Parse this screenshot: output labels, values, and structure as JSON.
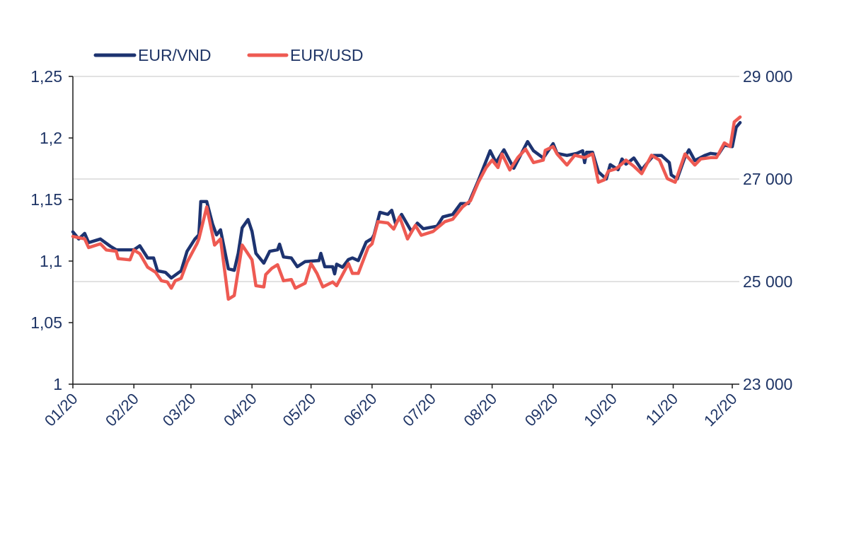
{
  "chart_data": {
    "type": "line",
    "title": "",
    "xlabel": "",
    "ylabel_left": "",
    "ylabel_right": "",
    "x_tick_labels": [
      "01/20",
      "02/20",
      "03/20",
      "04/20",
      "05/20",
      "06/20",
      "07/20",
      "08/20",
      "09/20",
      "10/20",
      "11/20",
      "12/20"
    ],
    "x_tick_dates": [
      "2020-01-01",
      "2020-02-01",
      "2020-03-01",
      "2020-04-01",
      "2020-05-01",
      "2020-06-01",
      "2020-07-01",
      "2020-08-01",
      "2020-09-01",
      "2020-10-01",
      "2020-11-01",
      "2020-12-01"
    ],
    "y_left": {
      "range": [
        1,
        1.25
      ],
      "ticks": [
        1,
        1.05,
        1.1,
        1.15,
        1.2,
        1.25
      ],
      "tick_labels": [
        "1",
        "1,05",
        "1,1",
        "1,15",
        "1,2",
        "1,25"
      ]
    },
    "y_right": {
      "range": [
        23000,
        29000
      ],
      "ticks": [
        23000,
        25000,
        27000,
        29000
      ],
      "tick_labels": [
        "23 000",
        "25 000",
        "27 000",
        "29 000"
      ]
    },
    "grid": "horizontal lines at right-axis ticks",
    "legend": {
      "placement": "top-left"
    },
    "series": [
      {
        "name": "EUR/VND",
        "axis": "right",
        "color": "#1d3370",
        "points": [
          [
            "2020-01-01",
            25970
          ],
          [
            "2020-01-04",
            25830
          ],
          [
            "2020-01-07",
            25940
          ],
          [
            "2020-01-09",
            25760
          ],
          [
            "2020-01-15",
            25830
          ],
          [
            "2020-01-20",
            25690
          ],
          [
            "2020-01-23",
            25620
          ],
          [
            "2020-02-01",
            25620
          ],
          [
            "2020-02-04",
            25700
          ],
          [
            "2020-02-08",
            25460
          ],
          [
            "2020-02-11",
            25460
          ],
          [
            "2020-02-13",
            25210
          ],
          [
            "2020-02-17",
            25180
          ],
          [
            "2020-02-20",
            25070
          ],
          [
            "2020-02-25",
            25210
          ],
          [
            "2020-02-28",
            25590
          ],
          [
            "2020-03-03",
            25830
          ],
          [
            "2020-03-05",
            25910
          ],
          [
            "2020-03-06",
            26560
          ],
          [
            "2020-03-09",
            26560
          ],
          [
            "2020-03-12",
            26120
          ],
          [
            "2020-03-14",
            25910
          ],
          [
            "2020-03-16",
            26010
          ],
          [
            "2020-03-20",
            25250
          ],
          [
            "2020-03-23",
            25220
          ],
          [
            "2020-03-25",
            25550
          ],
          [
            "2020-03-27",
            26050
          ],
          [
            "2020-03-30",
            26210
          ],
          [
            "2020-04-01",
            25980
          ],
          [
            "2020-04-03",
            25550
          ],
          [
            "2020-04-07",
            25360
          ],
          [
            "2020-04-10",
            25590
          ],
          [
            "2020-04-14",
            25620
          ],
          [
            "2020-04-15",
            25730
          ],
          [
            "2020-04-17",
            25480
          ],
          [
            "2020-04-21",
            25460
          ],
          [
            "2020-04-24",
            25290
          ],
          [
            "2020-04-28",
            25390
          ],
          [
            "2020-05-05",
            25410
          ],
          [
            "2020-05-06",
            25550
          ],
          [
            "2020-05-08",
            25290
          ],
          [
            "2020-05-12",
            25290
          ],
          [
            "2020-05-13",
            25150
          ],
          [
            "2020-05-14",
            25340
          ],
          [
            "2020-05-17",
            25280
          ],
          [
            "2020-05-20",
            25430
          ],
          [
            "2020-05-22",
            25460
          ],
          [
            "2020-05-25",
            25410
          ],
          [
            "2020-05-29",
            25770
          ],
          [
            "2020-06-01",
            25840
          ],
          [
            "2020-06-02",
            25910
          ],
          [
            "2020-06-05",
            26350
          ],
          [
            "2020-06-09",
            26310
          ],
          [
            "2020-06-11",
            26390
          ],
          [
            "2020-06-13",
            26120
          ],
          [
            "2020-06-16",
            26310
          ],
          [
            "2020-06-21",
            25980
          ],
          [
            "2020-06-24",
            26140
          ],
          [
            "2020-06-27",
            26030
          ],
          [
            "2020-07-04",
            26080
          ],
          [
            "2020-07-07",
            26260
          ],
          [
            "2020-07-12",
            26310
          ],
          [
            "2020-07-16",
            26520
          ],
          [
            "2020-07-20",
            26520
          ],
          [
            "2020-07-25",
            26970
          ],
          [
            "2020-07-31",
            27550
          ],
          [
            "2020-08-03",
            27320
          ],
          [
            "2020-08-07",
            27570
          ],
          [
            "2020-08-12",
            27210
          ],
          [
            "2020-08-19",
            27730
          ],
          [
            "2020-08-22",
            27550
          ],
          [
            "2020-08-27",
            27410
          ],
          [
            "2020-09-01",
            27690
          ],
          [
            "2020-09-03",
            27500
          ],
          [
            "2020-09-08",
            27460
          ],
          [
            "2020-09-13",
            27500
          ],
          [
            "2020-09-16",
            27550
          ],
          [
            "2020-09-17",
            27320
          ],
          [
            "2020-09-18",
            27520
          ],
          [
            "2020-09-21",
            27520
          ],
          [
            "2020-09-24",
            27140
          ],
          [
            "2020-09-28",
            27000
          ],
          [
            "2020-09-30",
            27280
          ],
          [
            "2020-10-04",
            27180
          ],
          [
            "2020-10-06",
            27390
          ],
          [
            "2020-10-08",
            27290
          ],
          [
            "2020-10-12",
            27410
          ],
          [
            "2020-10-16",
            27180
          ],
          [
            "2020-10-22",
            27460
          ],
          [
            "2020-10-26",
            27460
          ],
          [
            "2020-10-30",
            27320
          ],
          [
            "2020-10-31",
            27080
          ],
          [
            "2020-11-03",
            27000
          ],
          [
            "2020-11-07",
            27430
          ],
          [
            "2020-11-09",
            27570
          ],
          [
            "2020-11-12",
            27360
          ],
          [
            "2020-11-17",
            27460
          ],
          [
            "2020-11-20",
            27500
          ],
          [
            "2020-11-24",
            27480
          ],
          [
            "2020-11-27",
            27660
          ],
          [
            "2020-12-01",
            27630
          ],
          [
            "2020-12-03",
            28010
          ],
          [
            "2020-12-05",
            28100
          ]
        ]
      },
      {
        "name": "EUR/USD",
        "axis": "left",
        "color": "#ee5a52",
        "points": [
          [
            "2020-01-01",
            1.12
          ],
          [
            "2020-01-07",
            1.118
          ],
          [
            "2020-01-09",
            1.111
          ],
          [
            "2020-01-15",
            1.114
          ],
          [
            "2020-01-18",
            1.109
          ],
          [
            "2020-01-23",
            1.108
          ],
          [
            "2020-01-24",
            1.102
          ],
          [
            "2020-01-30",
            1.101
          ],
          [
            "2020-02-01",
            1.109
          ],
          [
            "2020-02-04",
            1.106
          ],
          [
            "2020-02-08",
            1.095
          ],
          [
            "2020-02-12",
            1.091
          ],
          [
            "2020-02-15",
            1.084
          ],
          [
            "2020-02-18",
            1.083
          ],
          [
            "2020-02-20",
            1.078
          ],
          [
            "2020-02-22",
            1.084
          ],
          [
            "2020-02-25",
            1.086
          ],
          [
            "2020-02-28",
            1.099
          ],
          [
            "2020-03-04",
            1.114
          ],
          [
            "2020-03-05",
            1.118
          ],
          [
            "2020-03-09",
            1.144
          ],
          [
            "2020-03-13",
            1.113
          ],
          [
            "2020-03-16",
            1.118
          ],
          [
            "2020-03-20",
            1.069
          ],
          [
            "2020-03-23",
            1.072
          ],
          [
            "2020-03-27",
            1.113
          ],
          [
            "2020-04-01",
            1.101
          ],
          [
            "2020-04-03",
            1.08
          ],
          [
            "2020-04-07",
            1.079
          ],
          [
            "2020-04-08",
            1.089
          ],
          [
            "2020-04-11",
            1.094
          ],
          [
            "2020-04-14",
            1.097
          ],
          [
            "2020-04-17",
            1.084
          ],
          [
            "2020-04-21",
            1.085
          ],
          [
            "2020-04-23",
            1.078
          ],
          [
            "2020-04-28",
            1.082
          ],
          [
            "2020-05-01",
            1.098
          ],
          [
            "2020-05-04",
            1.09
          ],
          [
            "2020-05-07",
            1.079
          ],
          [
            "2020-05-12",
            1.083
          ],
          [
            "2020-05-14",
            1.08
          ],
          [
            "2020-05-20",
            1.098
          ],
          [
            "2020-05-22",
            1.09
          ],
          [
            "2020-05-25",
            1.09
          ],
          [
            "2020-05-30",
            1.111
          ],
          [
            "2020-06-01",
            1.114
          ],
          [
            "2020-06-04",
            1.132
          ],
          [
            "2020-06-09",
            1.131
          ],
          [
            "2020-06-12",
            1.126
          ],
          [
            "2020-06-15",
            1.136
          ],
          [
            "2020-06-19",
            1.118
          ],
          [
            "2020-06-23",
            1.129
          ],
          [
            "2020-06-26",
            1.121
          ],
          [
            "2020-07-02",
            1.124
          ],
          [
            "2020-07-08",
            1.132
          ],
          [
            "2020-07-12",
            1.134
          ],
          [
            "2020-07-17",
            1.144
          ],
          [
            "2020-07-21",
            1.149
          ],
          [
            "2020-07-25",
            1.164
          ],
          [
            "2020-07-29",
            1.176
          ],
          [
            "2020-08-01",
            1.182
          ],
          [
            "2020-08-04",
            1.176
          ],
          [
            "2020-08-06",
            1.187
          ],
          [
            "2020-08-10",
            1.174
          ],
          [
            "2020-08-14",
            1.184
          ],
          [
            "2020-08-18",
            1.191
          ],
          [
            "2020-08-22",
            1.18
          ],
          [
            "2020-08-27",
            1.182
          ],
          [
            "2020-08-28",
            1.19
          ],
          [
            "2020-09-01",
            1.193
          ],
          [
            "2020-09-03",
            1.187
          ],
          [
            "2020-09-08",
            1.178
          ],
          [
            "2020-09-12",
            1.186
          ],
          [
            "2020-09-17",
            1.184
          ],
          [
            "2020-09-21",
            1.187
          ],
          [
            "2020-09-24",
            1.164
          ],
          [
            "2020-09-27",
            1.166
          ],
          [
            "2020-09-29",
            1.173
          ],
          [
            "2020-10-03",
            1.175
          ],
          [
            "2020-10-06",
            1.179
          ],
          [
            "2020-10-08",
            1.182
          ],
          [
            "2020-10-12",
            1.177
          ],
          [
            "2020-10-16",
            1.171
          ],
          [
            "2020-10-21",
            1.186
          ],
          [
            "2020-10-25",
            1.182
          ],
          [
            "2020-10-29",
            1.167
          ],
          [
            "2020-11-02",
            1.164
          ],
          [
            "2020-11-07",
            1.187
          ],
          [
            "2020-11-12",
            1.178
          ],
          [
            "2020-11-15",
            1.183
          ],
          [
            "2020-11-20",
            1.184
          ],
          [
            "2020-11-23",
            1.184
          ],
          [
            "2020-11-27",
            1.196
          ],
          [
            "2020-11-30",
            1.193
          ],
          [
            "2020-12-02",
            1.213
          ],
          [
            "2020-12-05",
            1.217
          ]
        ]
      }
    ]
  }
}
